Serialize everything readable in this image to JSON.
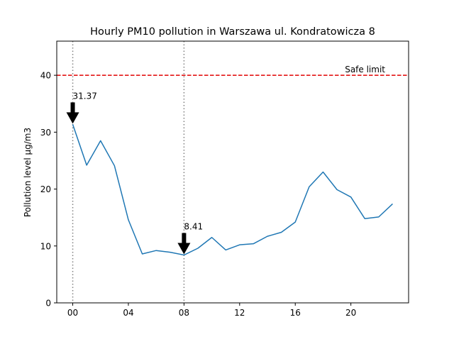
{
  "chart_data": {
    "type": "line",
    "title": "Hourly PM10 pollution in Warszawa ul. Kondratowicza 8",
    "xlabel": "",
    "ylabel": "Pollution level µg/m3",
    "x": [
      0,
      1,
      2,
      3,
      4,
      5,
      6,
      7,
      8,
      9,
      10,
      11,
      12,
      13,
      14,
      15,
      16,
      17,
      18,
      19,
      20,
      21,
      22,
      23
    ],
    "series": [
      {
        "values": [
          31.37,
          24.2,
          28.5,
          24.1,
          14.6,
          8.6,
          9.2,
          8.9,
          8.41,
          9.6,
          11.5,
          9.3,
          10.2,
          10.4,
          11.7,
          12.4,
          14.2,
          20.4,
          23.0,
          19.9,
          18.6,
          14.8,
          15.1,
          17.4
        ],
        "color": "#1f77b4"
      }
    ],
    "xlim": [
      -1.15,
      24.15
    ],
    "ylim": [
      0,
      46
    ],
    "xticks": [
      0,
      4,
      8,
      12,
      16,
      20
    ],
    "xtick_labels": [
      "00",
      "04",
      "08",
      "12",
      "16",
      "20"
    ],
    "yticks": [
      0,
      10,
      20,
      30,
      40
    ],
    "ytick_labels": [
      "0",
      "10",
      "20",
      "30",
      "40"
    ],
    "grid": false,
    "vlines": [
      {
        "x": 0,
        "color": "#808080",
        "style": "dotted"
      },
      {
        "x": 8,
        "color": "#808080",
        "style": "dotted"
      }
    ],
    "hlines": [
      {
        "y": 40,
        "label": "Safe limit",
        "color": "#e00000",
        "style": "dashed"
      }
    ],
    "annotations": [
      {
        "x": 0,
        "y": 31.37,
        "text": "31.37"
      },
      {
        "x": 8,
        "y": 8.41,
        "text": "8.41"
      }
    ]
  }
}
